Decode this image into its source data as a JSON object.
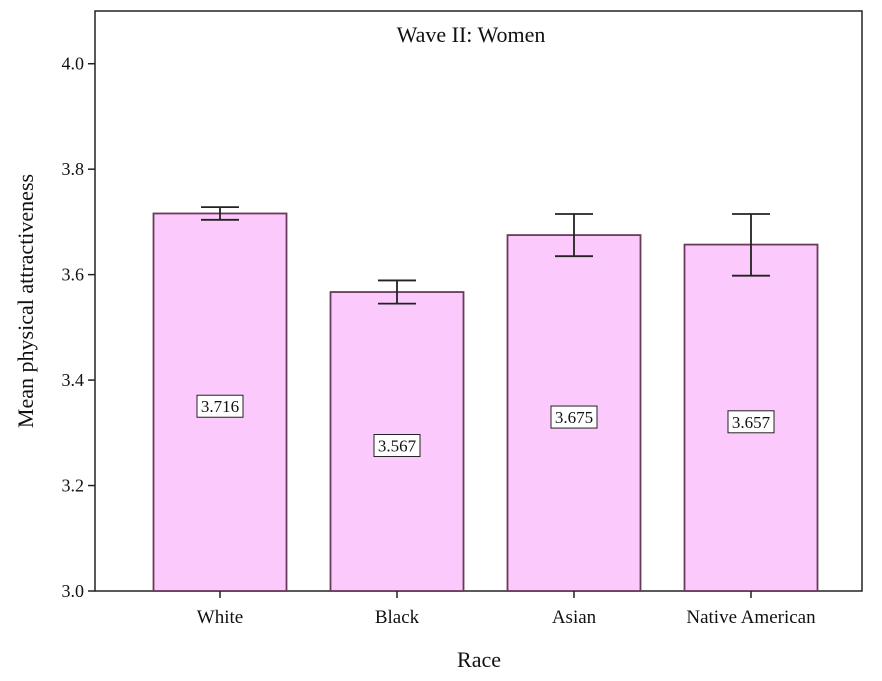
{
  "chart_data": {
    "type": "bar",
    "title": "Wave II:  Women",
    "xlabel": "Race",
    "ylabel": "Mean physical attractiveness",
    "categories": [
      "White",
      "Black",
      "Asian",
      "Native American"
    ],
    "values": [
      3.716,
      3.567,
      3.675,
      3.657
    ],
    "value_labels": [
      "3.716",
      "3.567",
      "3.675",
      "3.657"
    ],
    "error_bars": [
      {
        "low": 3.704,
        "high": 3.728
      },
      {
        "low": 3.545,
        "high": 3.589
      },
      {
        "low": 3.635,
        "high": 3.715
      },
      {
        "low": 3.598,
        "high": 3.715
      }
    ],
    "ylim": [
      3.0,
      4.1
    ],
    "yticks": [
      3.0,
      3.2,
      3.4,
      3.6,
      3.8,
      4.0
    ],
    "ytick_labels": [
      "3.0",
      "3.2",
      "3.4",
      "3.6",
      "3.8",
      "4.0"
    ],
    "grid": false,
    "colors": {
      "bar_fill": "#fbc9fb",
      "bar_stroke": "#6b3a5a",
      "axis": "#222222"
    }
  }
}
